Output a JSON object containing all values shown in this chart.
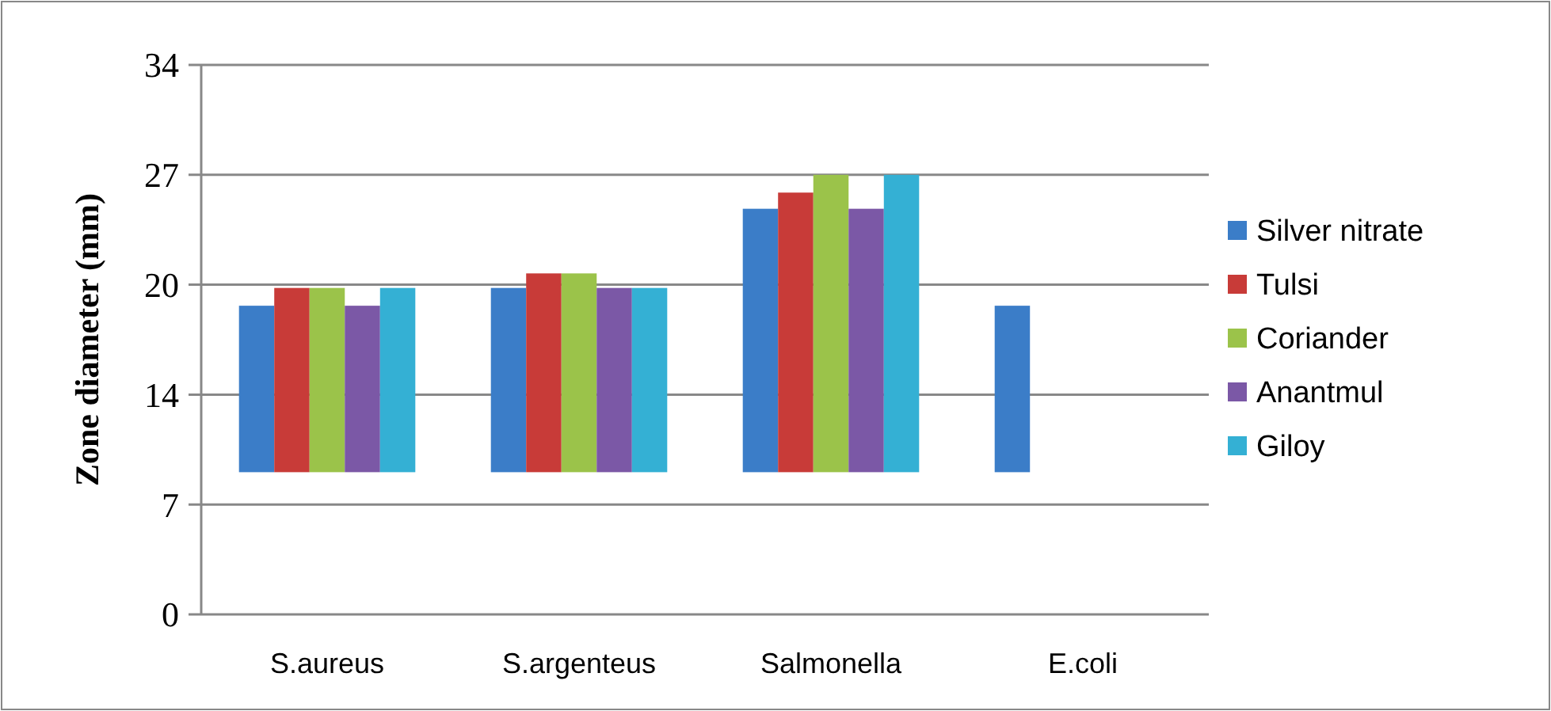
{
  "chart_data": {
    "type": "bar",
    "ylabel": "Zone diameter (mm)",
    "categories": [
      "S.aureus",
      "S.argenteus",
      "Salmonella",
      "E.coli"
    ],
    "series": [
      {
        "name": "Silver nitrate",
        "color": "#3b7dc8",
        "values": [
          10.3,
          11.4,
          16.3,
          10.3
        ],
        "base": [
          8.8,
          8.8,
          8.8,
          8.8
        ]
      },
      {
        "name": "Tulsi",
        "color": "#c83b38",
        "values": [
          11.4,
          12.3,
          17.3,
          null
        ],
        "base": [
          8.8,
          8.8,
          8.8,
          null
        ]
      },
      {
        "name": "Coriander",
        "color": "#9bc34a",
        "values": [
          11.4,
          12.3,
          18.4,
          null
        ],
        "base": [
          8.8,
          8.8,
          8.8,
          null
        ]
      },
      {
        "name": "Anantmul",
        "color": "#7b58a6",
        "values": [
          10.3,
          11.4,
          16.3,
          null
        ],
        "base": [
          8.8,
          8.8,
          8.8,
          null
        ]
      },
      {
        "name": "Giloy",
        "color": "#34b0d4",
        "values": [
          11.4,
          11.4,
          18.4,
          null
        ],
        "base": [
          8.8,
          8.8,
          8.8,
          null
        ]
      }
    ],
    "ylim": [
      0,
      34
    ],
    "yticks": [
      0,
      {
        "value": 6.8,
        "label": "7"
      },
      {
        "value": 13.6,
        "label": "14"
      },
      {
        "value": 20.4,
        "label": "20"
      },
      {
        "value": 27.2,
        "label": "27"
      },
      34
    ],
    "grid": "y",
    "legend": "right"
  }
}
